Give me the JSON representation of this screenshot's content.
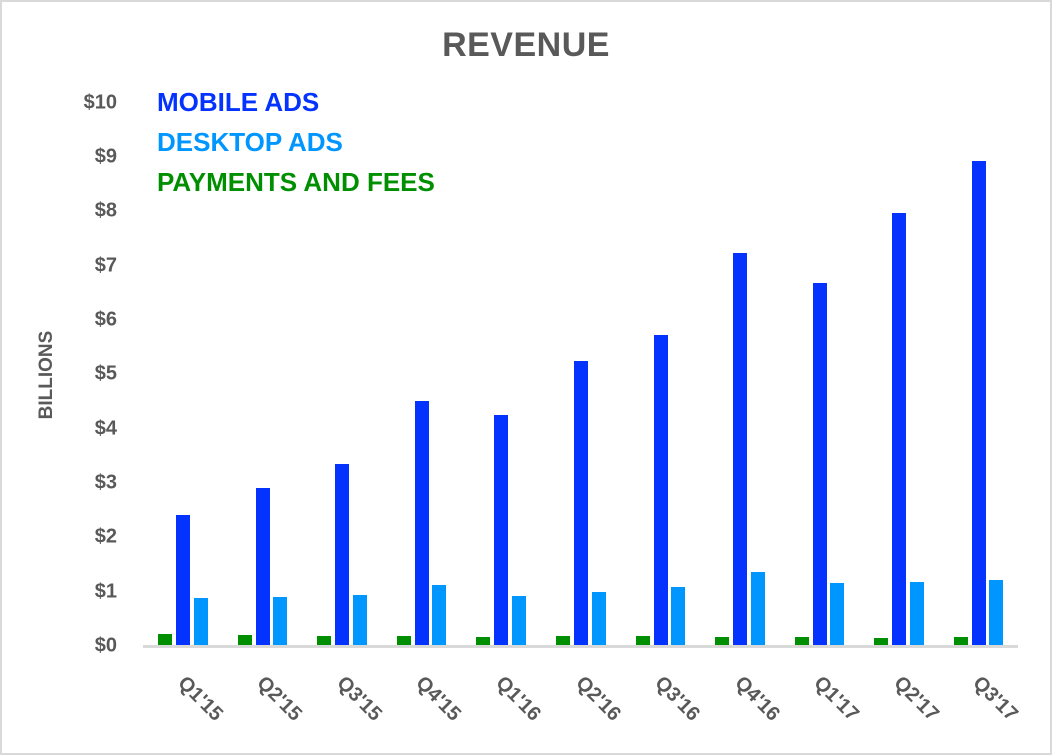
{
  "chart_data": {
    "type": "bar",
    "title": "REVENUE",
    "xlabel": "",
    "ylabel": "BILLIONS",
    "ylim": [
      0,
      10
    ],
    "yticks": [
      "$0",
      "$1",
      "$2",
      "$3",
      "$4",
      "$5",
      "$6",
      "$7",
      "$8",
      "$9",
      "$10"
    ],
    "grid": false,
    "legend_position": "top-left (inside plot)",
    "categories": [
      "Q1'15",
      "Q2'15",
      "Q3'15",
      "Q4'15",
      "Q1'16",
      "Q2'16",
      "Q3'16",
      "Q4'16",
      "Q1'17",
      "Q2'17",
      "Q3'17"
    ],
    "series": [
      {
        "name": "PAYMENTS AND FEES",
        "color": "#008F00",
        "values": [
          0.22,
          0.2,
          0.18,
          0.18,
          0.17,
          0.18,
          0.18,
          0.17,
          0.17,
          0.15,
          0.17
        ]
      },
      {
        "name": "MOBILE ADS",
        "color": "#0433FF",
        "values": [
          2.41,
          2.9,
          3.35,
          4.5,
          4.25,
          5.24,
          5.72,
          7.24,
          6.67,
          7.96,
          8.92
        ]
      },
      {
        "name": "DESKTOP ADS",
        "color": "#0096FF",
        "values": [
          0.88,
          0.9,
          0.94,
          1.12,
          0.92,
          0.99,
          1.08,
          1.36,
          1.16,
          1.18,
          1.21
        ]
      }
    ],
    "legend": [
      {
        "label": "MOBILE ADS",
        "color": "#0433FF"
      },
      {
        "label": "DESKTOP ADS",
        "color": "#0096FF"
      },
      {
        "label": "PAYMENTS AND FEES",
        "color": "#008F00"
      }
    ]
  }
}
